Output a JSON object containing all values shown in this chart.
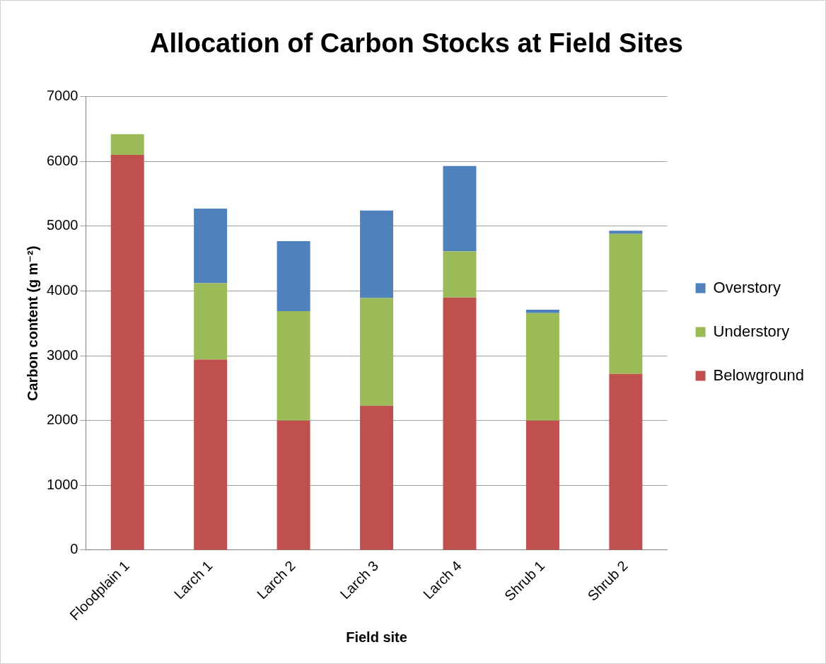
{
  "chart_data": {
    "type": "bar",
    "title": "Allocation of Carbon Stocks at Field Sites",
    "xlabel": "Field site",
    "ylabel": "Carbon content (g m⁻²)",
    "categories": [
      "Floodplain 1",
      "Larch 1",
      "Larch 2",
      "Larch 3",
      "Larch 4",
      "Shrub 1",
      "Shrub 2"
    ],
    "stacked": true,
    "series": [
      {
        "name": "Belowground",
        "color": "#c0504d",
        "values": [
          6100,
          2940,
          2000,
          2230,
          3900,
          2000,
          2720
        ]
      },
      {
        "name": "Understory",
        "color": "#9bbb59",
        "values": [
          320,
          1180,
          1690,
          1660,
          710,
          1660,
          2160
        ]
      },
      {
        "name": "Overstory",
        "color": "#4f81bd",
        "values": [
          0,
          1150,
          1080,
          1350,
          1320,
          50,
          50
        ]
      }
    ],
    "ylim": [
      0,
      7000
    ],
    "yticks": [
      0,
      1000,
      2000,
      3000,
      4000,
      5000,
      6000,
      7000
    ],
    "grid": "y",
    "legend": "right"
  }
}
